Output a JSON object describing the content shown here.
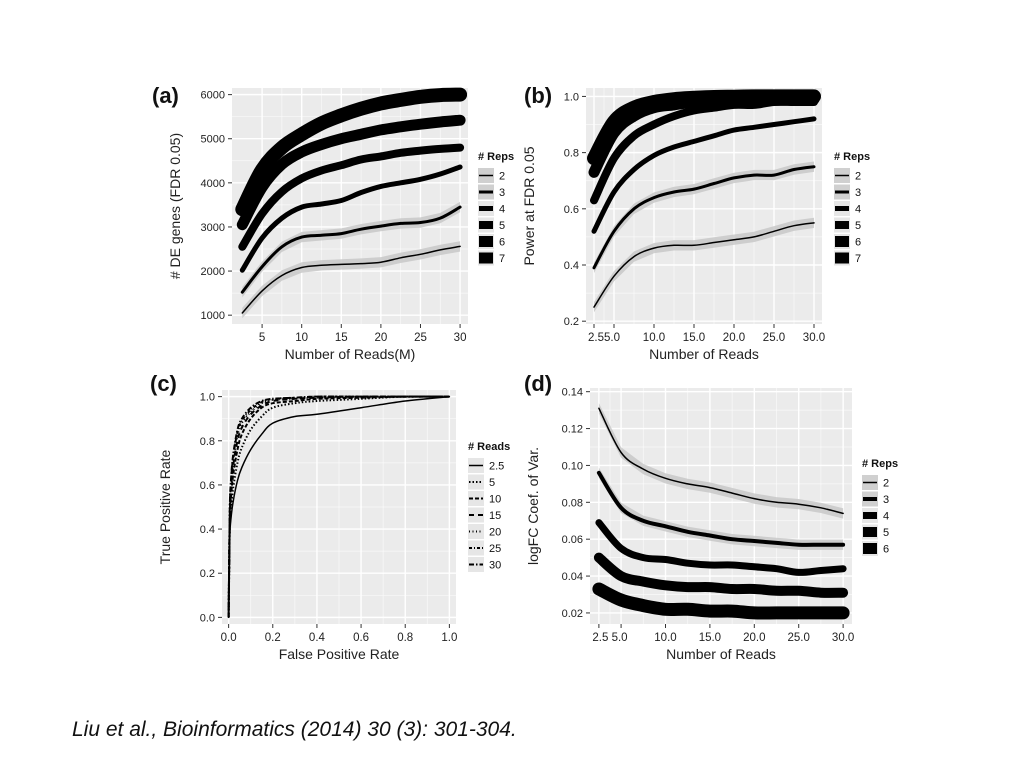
{
  "citation": "Liu et al., Bioinformatics (2014) 30 (3): 301-304.",
  "colors": {
    "panel_bg": "#ebebeb",
    "grid": "#ffffff",
    "line": "#000000",
    "band": "#c8c8c8",
    "text": "#222222"
  },
  "chart_data": [
    {
      "id": "a",
      "type": "line",
      "panel_label": "(a)",
      "xlabel": "Number of Reads(M)",
      "ylabel": "# DE genes (FDR 0.05)",
      "xlim": [
        1.2,
        31
      ],
      "ylim": [
        800,
        6150
      ],
      "xticks": [
        5,
        10,
        15,
        20,
        25,
        30
      ],
      "xtick_labels": [
        "5",
        "10",
        "15",
        "20",
        "25",
        "30"
      ],
      "yticks": [
        1000,
        2000,
        3000,
        4000,
        5000,
        6000
      ],
      "ytick_labels": [
        "1000",
        "2000",
        "3000",
        "4000",
        "5000",
        "6000"
      ],
      "legend": {
        "title": "# Reps",
        "labels": [
          "2",
          "3",
          "4",
          "5",
          "6",
          "7"
        ],
        "position": "right"
      },
      "x": [
        2.5,
        5,
        7.5,
        10,
        12.5,
        15,
        17.5,
        20,
        22.5,
        25,
        27.5,
        30
      ],
      "series": [
        {
          "name": "2",
          "values": [
            1050,
            1550,
            1900,
            2080,
            2130,
            2150,
            2170,
            2200,
            2300,
            2380,
            2480,
            2560
          ]
        },
        {
          "name": "3",
          "values": [
            1520,
            2100,
            2550,
            2770,
            2810,
            2850,
            2950,
            3020,
            3080,
            3100,
            3200,
            3450
          ]
        },
        {
          "name": "4",
          "values": [
            2020,
            2750,
            3200,
            3450,
            3520,
            3600,
            3780,
            3920,
            4000,
            4080,
            4200,
            4360
          ]
        },
        {
          "name": "5",
          "values": [
            2550,
            3300,
            3800,
            4100,
            4280,
            4400,
            4530,
            4600,
            4680,
            4730,
            4770,
            4800
          ]
        },
        {
          "name": "6",
          "values": [
            3050,
            3900,
            4420,
            4700,
            4870,
            5000,
            5100,
            5200,
            5270,
            5330,
            5380,
            5420
          ]
        },
        {
          "name": "7",
          "values": [
            3400,
            4300,
            4800,
            5100,
            5350,
            5530,
            5680,
            5800,
            5880,
            5950,
            5990,
            6000
          ]
        }
      ],
      "widths": [
        1.5,
        3,
        5,
        8,
        11,
        14
      ],
      "band_series": [
        0,
        1
      ]
    },
    {
      "id": "b",
      "type": "line",
      "panel_label": "(b)",
      "xlabel": "Number of Reads",
      "ylabel": "Power at FDR 0.05",
      "xlim": [
        1.5,
        31
      ],
      "ylim": [
        0.19,
        1.03
      ],
      "xticks": [
        2.5,
        5,
        10,
        15,
        20,
        25,
        30
      ],
      "xtick_labels": [
        "2.5",
        "5.0",
        "10.0",
        "15.0",
        "20.0",
        "25.0",
        "30.0"
      ],
      "xtick_merge": "2.55.0",
      "yticks": [
        0.2,
        0.4,
        0.6,
        0.8,
        1.0
      ],
      "ytick_labels": [
        "0.2",
        "0.4",
        "0.6",
        "0.8",
        "1.0"
      ],
      "legend": {
        "title": "# Reps",
        "labels": [
          "2",
          "3",
          "4",
          "5",
          "6",
          "7"
        ],
        "position": "right"
      },
      "x": [
        2.5,
        5,
        7.5,
        10,
        12.5,
        15,
        17.5,
        20,
        22.5,
        25,
        27.5,
        30
      ],
      "series": [
        {
          "name": "2",
          "values": [
            0.25,
            0.36,
            0.43,
            0.46,
            0.47,
            0.47,
            0.48,
            0.49,
            0.5,
            0.52,
            0.54,
            0.55
          ]
        },
        {
          "name": "3",
          "values": [
            0.39,
            0.52,
            0.6,
            0.64,
            0.66,
            0.67,
            0.69,
            0.71,
            0.72,
            0.72,
            0.74,
            0.75
          ]
        },
        {
          "name": "4",
          "values": [
            0.52,
            0.66,
            0.74,
            0.79,
            0.82,
            0.84,
            0.86,
            0.88,
            0.89,
            0.9,
            0.91,
            0.92
          ]
        },
        {
          "name": "5",
          "values": [
            0.63,
            0.78,
            0.86,
            0.9,
            0.93,
            0.95,
            0.96,
            0.97,
            0.97,
            0.98,
            0.98,
            0.98
          ]
        },
        {
          "name": "6",
          "values": [
            0.73,
            0.87,
            0.93,
            0.96,
            0.97,
            0.98,
            0.985,
            0.99,
            0.99,
            0.99,
            0.99,
            0.99
          ]
        },
        {
          "name": "7",
          "values": [
            0.78,
            0.91,
            0.96,
            0.98,
            0.99,
            0.995,
            0.998,
            0.999,
            1.0,
            1.0,
            1.0,
            1.0
          ]
        }
      ],
      "widths": [
        1.5,
        3,
        5,
        8,
        11,
        14
      ],
      "band_series": [
        0,
        1
      ]
    },
    {
      "id": "c",
      "type": "line",
      "panel_label": "(c)",
      "xlabel": "False Positive Rate",
      "ylabel": "True Positive Rate",
      "xlim": [
        -0.03,
        1.03
      ],
      "ylim": [
        -0.03,
        1.03
      ],
      "xticks": [
        0.0,
        0.2,
        0.4,
        0.6,
        0.8,
        1.0
      ],
      "xtick_labels": [
        "0.0",
        "0.2",
        "0.4",
        "0.6",
        "0.8",
        "1.0"
      ],
      "yticks": [
        0.0,
        0.2,
        0.4,
        0.6,
        0.8,
        1.0
      ],
      "ytick_labels": [
        "0.0",
        "0.2",
        "0.4",
        "0.6",
        "0.8",
        "1.0"
      ],
      "legend": {
        "title": "# Reads",
        "labels": [
          "2.5",
          "5",
          "10",
          "15",
          "20",
          "25",
          "30"
        ],
        "position": "right"
      },
      "x": [
        0,
        0.005,
        0.01,
        0.02,
        0.04,
        0.06,
        0.1,
        0.15,
        0.2,
        0.3,
        0.4,
        0.6,
        0.8,
        1.0
      ],
      "series": [
        {
          "name": "2.5",
          "values": [
            0,
            0.35,
            0.44,
            0.52,
            0.62,
            0.68,
            0.76,
            0.83,
            0.88,
            0.91,
            0.92,
            0.95,
            0.98,
            1.0
          ]
        },
        {
          "name": "5",
          "values": [
            0,
            0.38,
            0.48,
            0.58,
            0.7,
            0.77,
            0.85,
            0.91,
            0.95,
            0.97,
            0.98,
            0.99,
            1.0,
            1.0
          ]
        },
        {
          "name": "10",
          "values": [
            0,
            0.42,
            0.53,
            0.64,
            0.76,
            0.83,
            0.9,
            0.95,
            0.97,
            0.98,
            0.99,
            0.995,
            1.0,
            1.0
          ]
        },
        {
          "name": "15",
          "values": [
            0,
            0.44,
            0.56,
            0.68,
            0.8,
            0.86,
            0.92,
            0.96,
            0.98,
            0.99,
            0.995,
            1.0,
            1.0,
            1.0
          ]
        },
        {
          "name": "20",
          "values": [
            0,
            0.46,
            0.58,
            0.7,
            0.82,
            0.88,
            0.93,
            0.97,
            0.985,
            0.99,
            0.995,
            1.0,
            1.0,
            1.0
          ]
        },
        {
          "name": "25",
          "values": [
            0,
            0.47,
            0.6,
            0.72,
            0.84,
            0.89,
            0.94,
            0.975,
            0.99,
            0.995,
            1.0,
            1.0,
            1.0,
            1.0
          ]
        },
        {
          "name": "30",
          "values": [
            0,
            0.48,
            0.61,
            0.73,
            0.85,
            0.9,
            0.95,
            0.98,
            0.99,
            0.995,
            1.0,
            1.0,
            1.0,
            1.0
          ]
        }
      ],
      "widths": [
        1.5,
        2,
        2,
        2,
        2,
        2,
        2
      ],
      "dashes": [
        "",
        "1.5 2",
        "4 2",
        "5 4",
        "1 2.5",
        "3 2 1 2",
        "5 2 1.5 2"
      ],
      "band_series": []
    },
    {
      "id": "d",
      "type": "line",
      "panel_label": "(d)",
      "xlabel": "Number of Reads",
      "ylabel": "logFC Coef. of Var.",
      "xlim": [
        1.5,
        31
      ],
      "ylim": [
        0.014,
        0.142
      ],
      "xticks": [
        2.5,
        5,
        10,
        15,
        20,
        25,
        30
      ],
      "xtick_labels": [
        "2.5",
        "5.0",
        "10.0",
        "15.0",
        "20.0",
        "25.0",
        "30.0"
      ],
      "xtick_merge": "2.5 5.0",
      "yticks": [
        0.02,
        0.04,
        0.06,
        0.08,
        0.1,
        0.12,
        0.14
      ],
      "ytick_labels": [
        "0.02",
        "0.04",
        "0.06",
        "0.08",
        "0.10",
        "0.12",
        "0.14"
      ],
      "legend": {
        "title": "# Reps",
        "labels": [
          "2",
          "3",
          "4",
          "5",
          "6"
        ],
        "position": "right"
      },
      "x": [
        2.5,
        5,
        7.5,
        10,
        12.5,
        15,
        17.5,
        20,
        22.5,
        25,
        27.5,
        30
      ],
      "series": [
        {
          "name": "2",
          "values": [
            0.131,
            0.107,
            0.098,
            0.093,
            0.09,
            0.088,
            0.085,
            0.082,
            0.08,
            0.079,
            0.077,
            0.074
          ]
        },
        {
          "name": "3",
          "values": [
            0.096,
            0.077,
            0.07,
            0.067,
            0.064,
            0.062,
            0.06,
            0.059,
            0.058,
            0.057,
            0.057,
            0.057
          ]
        },
        {
          "name": "4",
          "values": [
            0.069,
            0.055,
            0.05,
            0.049,
            0.047,
            0.046,
            0.046,
            0.045,
            0.044,
            0.042,
            0.043,
            0.044
          ]
        },
        {
          "name": "5",
          "values": [
            0.05,
            0.04,
            0.037,
            0.035,
            0.034,
            0.034,
            0.033,
            0.033,
            0.032,
            0.032,
            0.031,
            0.031
          ]
        },
        {
          "name": "6",
          "values": [
            0.033,
            0.027,
            0.024,
            0.022,
            0.022,
            0.021,
            0.021,
            0.02,
            0.02,
            0.02,
            0.02,
            0.02
          ]
        }
      ],
      "widths": [
        1.5,
        4,
        7,
        10,
        13
      ],
      "band_series": [
        0,
        1
      ]
    }
  ]
}
